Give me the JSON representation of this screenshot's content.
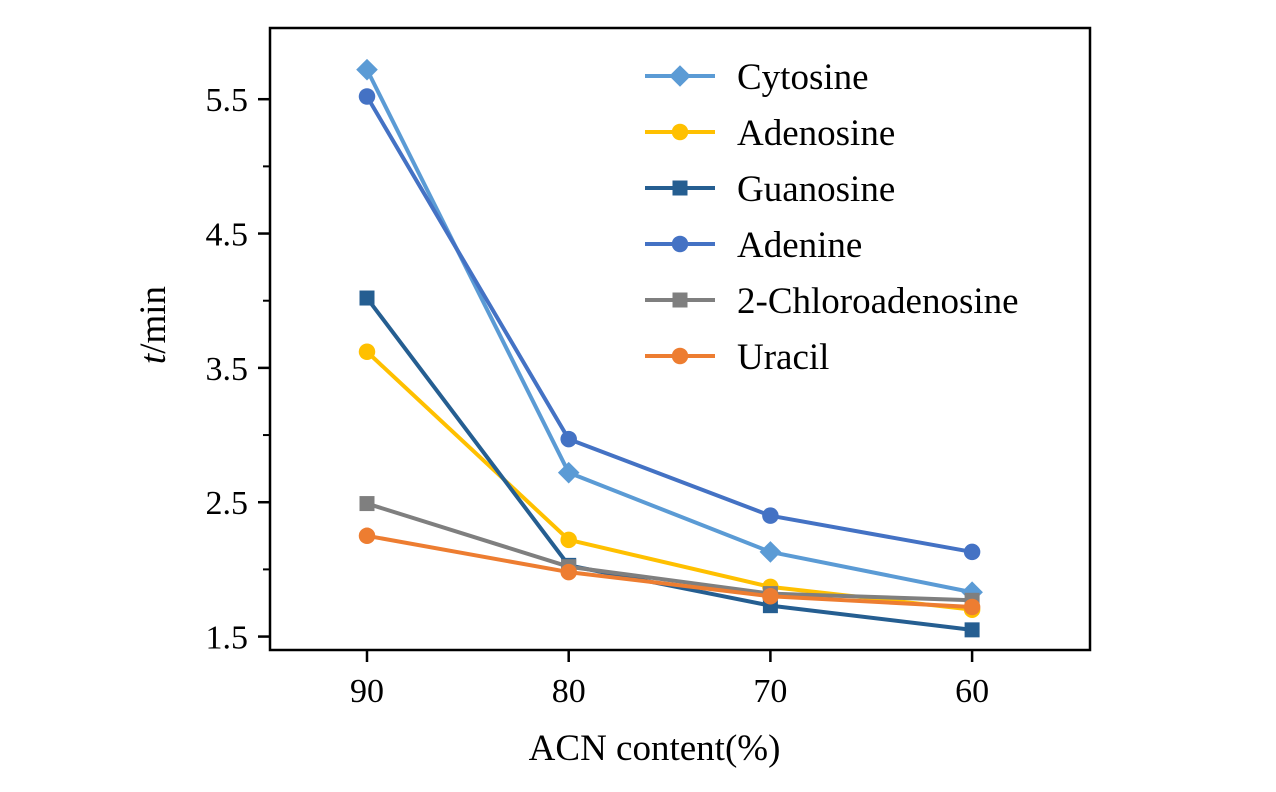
{
  "chart_data": {
    "type": "line",
    "title": "",
    "xlabel": "ACN content(%)",
    "ylabel": "t/min",
    "categories": [
      "90",
      "80",
      "70",
      "60"
    ],
    "yticks": [
      1.5,
      2.5,
      3.5,
      4.5,
      5.5
    ],
    "ylim": [
      1.4,
      6.03
    ],
    "grid": false,
    "legend_position": "top-right-inside",
    "axis_color": "#000000",
    "background_color": "#ffffff",
    "series": [
      {
        "name": "Cytosine",
        "color": "#5B9BD5",
        "marker": "diamond",
        "values": [
          5.72,
          2.72,
          2.13,
          1.83
        ]
      },
      {
        "name": "Adenosine",
        "color": "#FFC000",
        "marker": "circle",
        "values": [
          3.62,
          2.22,
          1.87,
          1.7
        ]
      },
      {
        "name": "Guanosine",
        "color": "#255E91",
        "marker": "square",
        "values": [
          4.02,
          2.03,
          1.73,
          1.55
        ]
      },
      {
        "name": "Adenine",
        "color": "#4472C4",
        "marker": "circle",
        "values": [
          5.52,
          2.97,
          2.4,
          2.13
        ]
      },
      {
        "name": "2-Chloroadenosine",
        "color": "#7F7F7F",
        "marker": "square",
        "values": [
          2.49,
          2.02,
          1.82,
          1.77
        ]
      },
      {
        "name": "Uracil",
        "color": "#ED7D31",
        "marker": "circle",
        "values": [
          2.25,
          1.98,
          1.8,
          1.72
        ]
      }
    ]
  }
}
